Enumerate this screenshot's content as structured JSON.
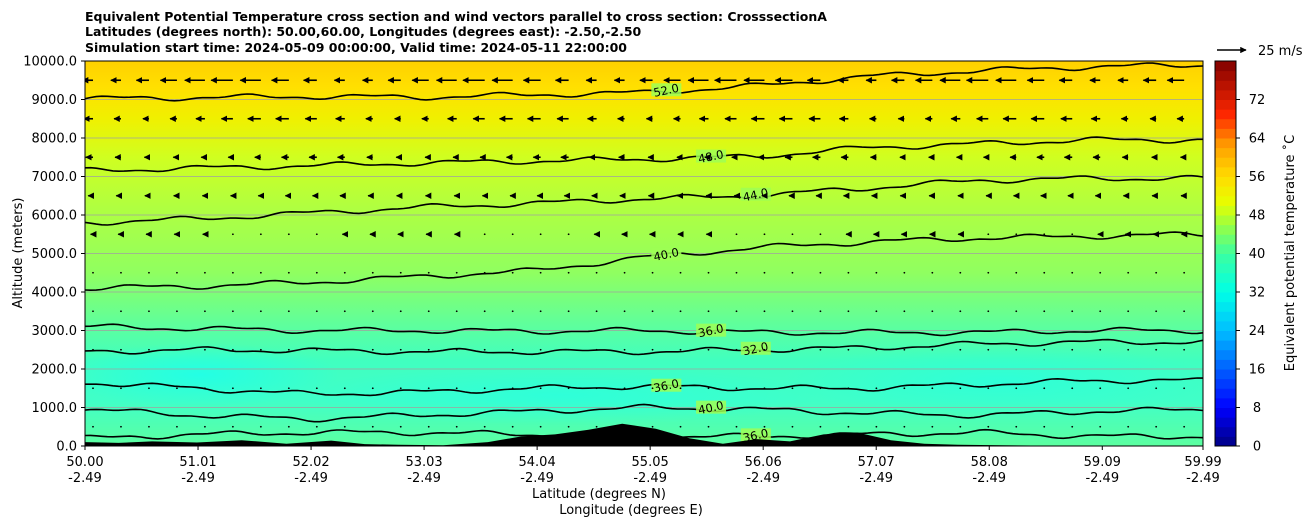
{
  "chart_data": {
    "type": "heatmap",
    "title_lines": [
      "Equivalent Potential Temperature cross section and wind vectors parallel to cross section: CrosssectionA",
      "Latitudes (degrees north): 50.00,60.00, Longitudes (degrees east): -2.50,-2.50",
      "Simulation start time: 2024-05-09 00:00:00, Valid time: 2024-05-11 22:00:00"
    ],
    "ylabel": "Altitude (meters)",
    "xlabel_lines": [
      "Latitude (degrees N)",
      "Longitude (degrees E)"
    ],
    "x_ticks": [
      {
        "lat": "50.00",
        "lon": "-2.49"
      },
      {
        "lat": "51.01",
        "lon": "-2.49"
      },
      {
        "lat": "52.02",
        "lon": "-2.49"
      },
      {
        "lat": "53.03",
        "lon": "-2.49"
      },
      {
        "lat": "54.04",
        "lon": "-2.49"
      },
      {
        "lat": "55.05",
        "lon": "-2.49"
      },
      {
        "lat": "56.06",
        "lon": "-2.49"
      },
      {
        "lat": "57.07",
        "lon": "-2.49"
      },
      {
        "lat": "58.08",
        "lon": "-2.49"
      },
      {
        "lat": "59.09",
        "lon": "-2.49"
      },
      {
        "lat": "59.99",
        "lon": "-2.49"
      }
    ],
    "y_ticks": [
      "0.0",
      "1000.0",
      "2000.0",
      "3000.0",
      "4000.0",
      "5000.0",
      "6000.0",
      "7000.0",
      "8000.0",
      "9000.0",
      "10000.0"
    ],
    "ylim": [
      0,
      10000
    ],
    "colorbar": {
      "label": "Equivalent potential temperature ˚C",
      "ticks": [
        "0",
        "8",
        "16",
        "24",
        "32",
        "40",
        "48",
        "56",
        "64",
        "72"
      ],
      "range": [
        0,
        80
      ],
      "step": 2
    },
    "quiver_key": "25 m/s",
    "contours": [
      {
        "label": "52.0",
        "alt": [
          9020,
          9050,
          9080,
          9060,
          9120,
          9180,
          9350,
          9600,
          9750,
          9850,
          9900
        ]
      },
      {
        "label": "48.0",
        "alt": [
          7150,
          7220,
          7280,
          7350,
          7400,
          7450,
          7520,
          7750,
          7850,
          7950,
          7950
        ]
      },
      {
        "label": "44.0",
        "alt": [
          5800,
          5900,
          6050,
          6200,
          6300,
          6420,
          6500,
          6700,
          6900,
          6950,
          6950
        ]
      },
      {
        "label": "40.0",
        "alt": [
          4100,
          4150,
          4250,
          4400,
          4550,
          4900,
          5150,
          5300,
          5400,
          5450,
          5500
        ]
      },
      {
        "label": "36.0",
        "alt": [
          3100,
          3050,
          3000,
          3000,
          2980,
          3000,
          2950,
          2950,
          2950,
          3000,
          3000
        ]
      },
      {
        "label": "32.0",
        "alt": [
          2450,
          2500,
          2480,
          2450,
          2450,
          2450,
          2500,
          2550,
          2650,
          2700,
          2700
        ]
      },
      {
        "label": "36.0",
        "alt": [
          1650,
          1500,
          1350,
          1400,
          1500,
          1550,
          1500,
          1500,
          1600,
          1700,
          1700
        ]
      },
      {
        "label": "40.0",
        "alt": [
          950,
          800,
          700,
          800,
          900,
          1000,
          950,
          850,
          800,
          900,
          950
        ]
      },
      {
        "label": "36.0",
        "alt": [
          200,
          300,
          350,
          350,
          300,
          250,
          250,
          300,
          350,
          250,
          250
        ]
      }
    ],
    "wind_x": [
      50.0,
      50.25,
      50.5,
      50.75,
      51.0,
      51.25,
      51.5,
      51.75,
      52.0,
      52.25,
      52.5,
      52.75,
      53.0,
      53.25,
      53.5,
      53.75,
      54.0,
      54.25,
      54.5,
      54.75,
      55.0,
      55.25,
      55.5,
      55.75,
      56.0,
      56.25,
      56.5,
      56.75,
      57.0,
      57.25,
      57.5,
      57.75,
      58.0,
      58.25,
      58.5,
      58.75,
      59.0,
      59.25,
      59.5,
      59.75
    ],
    "wind_levels": [
      500,
      1500,
      2500,
      3500,
      4500,
      5500,
      6500,
      7500,
      8500,
      9500
    ],
    "wind_u_by_level": [
      -0.3,
      -0.4,
      -0.5,
      -0.6,
      -0.8,
      -1.2,
      -2.0,
      -3.2,
      -5.5,
      -9.0
    ],
    "terrain": [
      {
        "lat": 50.0,
        "alt": 100
      },
      {
        "lat": 50.3,
        "alt": 80
      },
      {
        "lat": 50.6,
        "alt": 120
      },
      {
        "lat": 51.0,
        "alt": 90
      },
      {
        "lat": 51.4,
        "alt": 150
      },
      {
        "lat": 51.8,
        "alt": 60
      },
      {
        "lat": 52.2,
        "alt": 140
      },
      {
        "lat": 52.5,
        "alt": 50
      },
      {
        "lat": 52.8,
        "alt": 30
      },
      {
        "lat": 53.2,
        "alt": 20
      },
      {
        "lat": 53.6,
        "alt": 100
      },
      {
        "lat": 53.9,
        "alt": 250
      },
      {
        "lat": 54.2,
        "alt": 300
      },
      {
        "lat": 54.5,
        "alt": 420
      },
      {
        "lat": 54.8,
        "alt": 580
      },
      {
        "lat": 55.1,
        "alt": 450
      },
      {
        "lat": 55.4,
        "alt": 200
      },
      {
        "lat": 55.7,
        "alt": 60
      },
      {
        "lat": 56.0,
        "alt": 180
      },
      {
        "lat": 56.3,
        "alt": 120
      },
      {
        "lat": 56.6,
        "alt": 300
      },
      {
        "lat": 56.9,
        "alt": 350
      },
      {
        "lat": 57.2,
        "alt": 150
      },
      {
        "lat": 57.5,
        "alt": 60
      },
      {
        "lat": 57.8,
        "alt": 30
      },
      {
        "lat": 58.2,
        "alt": 20
      },
      {
        "lat": 58.6,
        "alt": 10
      },
      {
        "lat": 59.0,
        "alt": 10
      },
      {
        "lat": 59.5,
        "alt": 5
      },
      {
        "lat": 59.99,
        "alt": 5
      }
    ]
  }
}
